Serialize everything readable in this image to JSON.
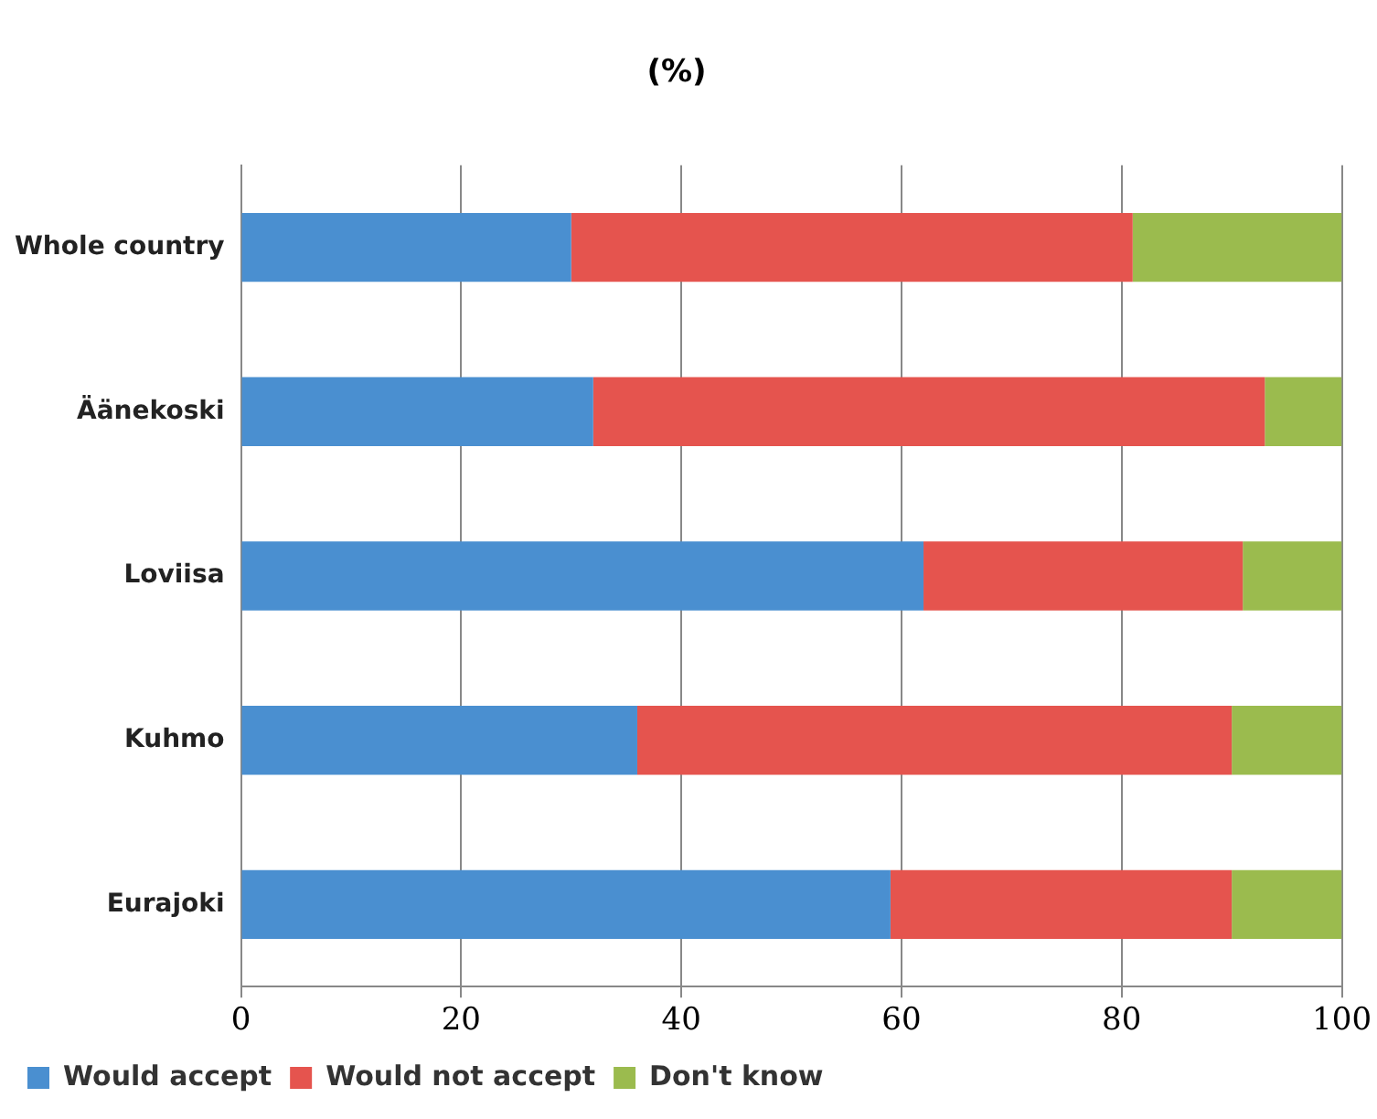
{
  "chart_data": {
    "type": "bar",
    "title": "(%)",
    "orientation": "horizontal",
    "stacked": true,
    "categories": [
      "Whole country",
      "Äänekoski",
      "Loviisa",
      "Kuhmo",
      "Eurajoki"
    ],
    "series": [
      {
        "name": "Would accept",
        "color": "#4a8fd0",
        "values": [
          30,
          32,
          62,
          36,
          59
        ]
      },
      {
        "name": "Would not accept",
        "color": "#e5544e",
        "values": [
          51,
          61,
          29,
          54,
          31
        ]
      },
      {
        "name": "Don't know",
        "color": "#9bbb4e",
        "values": [
          19,
          7,
          9,
          10,
          10
        ]
      }
    ],
    "xlim": [
      0,
      100
    ],
    "xticks": [
      0,
      20,
      40,
      60,
      80,
      100
    ],
    "grid": "x",
    "legend": "bottom"
  }
}
